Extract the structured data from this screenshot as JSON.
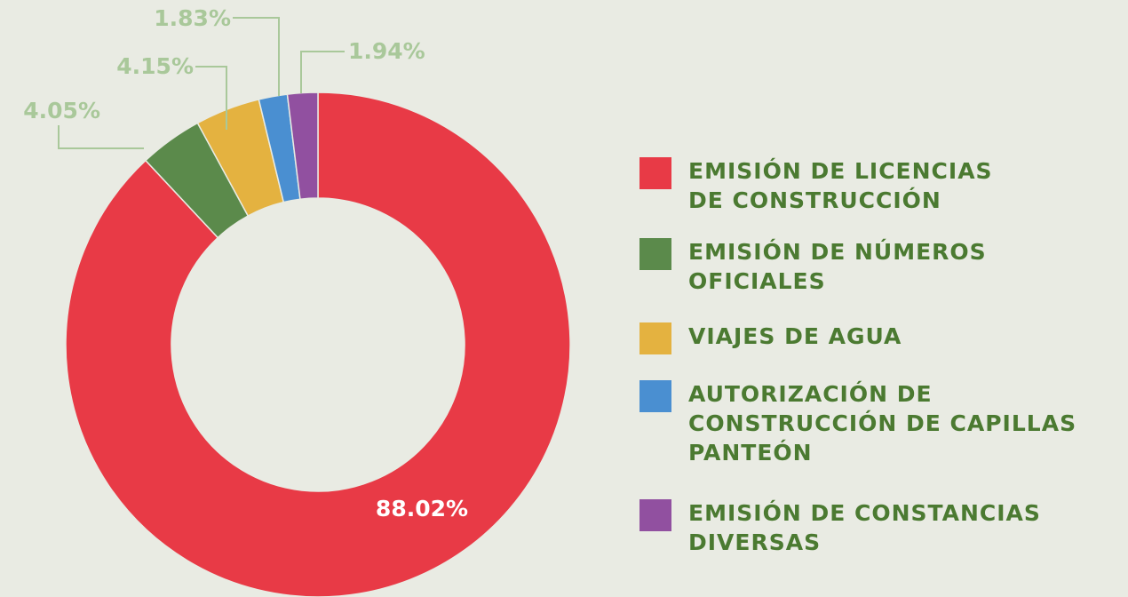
{
  "chart_data": {
    "type": "donut",
    "categories": [
      "EMISIÓN DE LICENCIAS\nDE CONSTRUCCIÓN",
      "EMISIÓN DE NÚMEROS\nOFICIALES",
      "VIAJES DE AGUA",
      "AUTORIZACIÓN DE\nCONSTRUCCIÓN DE CAPILLAS\nPANTEÓN",
      "EMISIÓN DE CONSTANCIAS\nDIVERSAS"
    ],
    "values": [
      88.02,
      4.05,
      4.15,
      1.83,
      1.94
    ],
    "value_labels": [
      "88.02%",
      "4.05%",
      "4.15%",
      "1.83%",
      "1.94%"
    ],
    "colors": [
      "#e83a46",
      "#5b8a4b",
      "#e4b240",
      "#4a8fd1",
      "#9150a0"
    ],
    "legend": "right"
  }
}
